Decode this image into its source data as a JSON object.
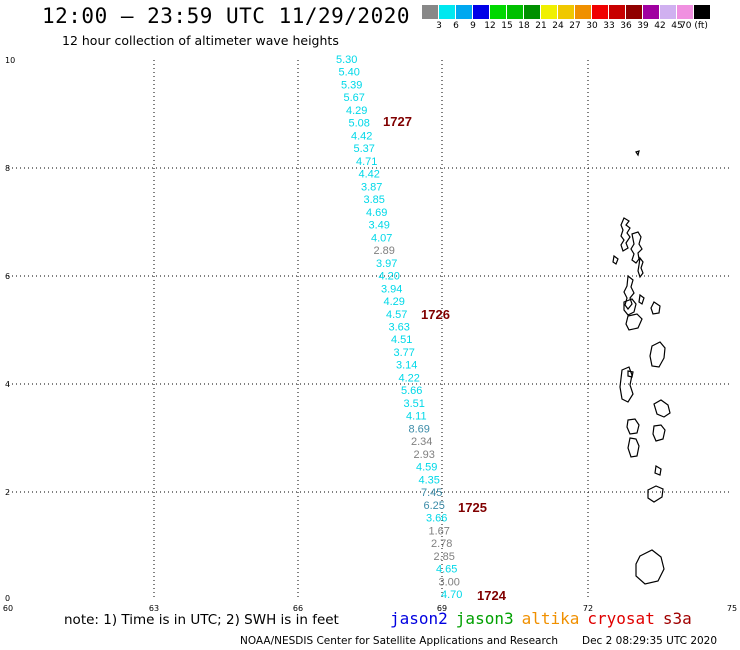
{
  "header": {
    "title": "12:00 – 23:59 UTC 11/29/2020",
    "subtitle": "12 hour collection of altimeter wave heights"
  },
  "legend": {
    "colors": [
      "#888888",
      "#00e8f0",
      "#00a8f0",
      "#0000e8",
      "#00d800",
      "#00c000",
      "#009000",
      "#f0f000",
      "#f0c800",
      "#f09000",
      "#f00000",
      "#c80000",
      "#900000",
      "#a000a0",
      "#d0b0f0",
      "#f090e0",
      "#000000"
    ],
    "labels": [
      "3",
      "6",
      "9",
      "12",
      "15",
      "18",
      "21",
      "24",
      "27",
      "30",
      "33",
      "36",
      "39",
      "42",
      "45",
      "70 (ft)"
    ]
  },
  "map": {
    "lon_ticks": [
      "60",
      "63",
      "66",
      "69",
      "72",
      "75"
    ],
    "lat_ticks": [
      "0",
      "2",
      "4",
      "6",
      "8",
      "10"
    ],
    "colors": {
      "cyan": "#00d8e8",
      "gray": "#808080",
      "steel": "#3c8ca8",
      "revolution": "#800000",
      "coast": "#000000",
      "grid": "#000000"
    },
    "revolution_labels": [
      "1727",
      "1726",
      "1725",
      "1724"
    ],
    "track": [
      {
        "v": "5.30",
        "c": "cyan"
      },
      {
        "v": "5.40",
        "c": "cyan"
      },
      {
        "v": "5.39",
        "c": "cyan"
      },
      {
        "v": "5.67",
        "c": "cyan"
      },
      {
        "v": "4.29",
        "c": "cyan"
      },
      {
        "v": "5.08",
        "c": "cyan"
      },
      {
        "v": "4.42",
        "c": "cyan"
      },
      {
        "v": "5.37",
        "c": "cyan"
      },
      {
        "v": "4.71",
        "c": "cyan"
      },
      {
        "v": "4.42",
        "c": "cyan"
      },
      {
        "v": "3.87",
        "c": "cyan"
      },
      {
        "v": "3.85",
        "c": "cyan"
      },
      {
        "v": "4.69",
        "c": "cyan"
      },
      {
        "v": "3.49",
        "c": "cyan"
      },
      {
        "v": "4.07",
        "c": "cyan"
      },
      {
        "v": "2.89",
        "c": "gray"
      },
      {
        "v": "3.97",
        "c": "cyan"
      },
      {
        "v": "4.20",
        "c": "cyan"
      },
      {
        "v": "3.94",
        "c": "cyan"
      },
      {
        "v": "4.29",
        "c": "cyan"
      },
      {
        "v": "4.57",
        "c": "cyan"
      },
      {
        "v": "3.63",
        "c": "cyan"
      },
      {
        "v": "4.51",
        "c": "cyan"
      },
      {
        "v": "3.77",
        "c": "cyan"
      },
      {
        "v": "3.14",
        "c": "cyan"
      },
      {
        "v": "4.22",
        "c": "cyan"
      },
      {
        "v": "5.66",
        "c": "cyan"
      },
      {
        "v": "3.51",
        "c": "cyan"
      },
      {
        "v": "4.11",
        "c": "cyan"
      },
      {
        "v": "8.69",
        "c": "steel"
      },
      {
        "v": "2.34",
        "c": "gray"
      },
      {
        "v": "2.93",
        "c": "gray"
      },
      {
        "v": "4.59",
        "c": "cyan"
      },
      {
        "v": "4.35",
        "c": "cyan"
      },
      {
        "v": "7.45",
        "c": "steel"
      },
      {
        "v": "6.25",
        "c": "steel"
      },
      {
        "v": "3.66",
        "c": "cyan"
      },
      {
        "v": "1.67",
        "c": "gray"
      },
      {
        "v": "2.78",
        "c": "gray"
      },
      {
        "v": "2.85",
        "c": "gray"
      },
      {
        "v": "4.65",
        "c": "cyan"
      },
      {
        "v": "3.00",
        "c": "gray"
      },
      {
        "v": "4.70",
        "c": "cyan"
      }
    ]
  },
  "footer": {
    "note": "note: 1) Time is in UTC; 2) SWH is in feet",
    "satellites": [
      {
        "name": "jason2",
        "color": "#0000e0"
      },
      {
        "name": "jason3",
        "color": "#00a000"
      },
      {
        "name": "altika",
        "color": "#f09000"
      },
      {
        "name": "cryosat",
        "color": "#e00000"
      },
      {
        "name": "s3a",
        "color": "#a00000"
      }
    ],
    "credit": "NOAA/NESDIS Center for Satellite Applications and Research",
    "timestamp": "Dec  2 08:29:35 UTC 2020"
  }
}
